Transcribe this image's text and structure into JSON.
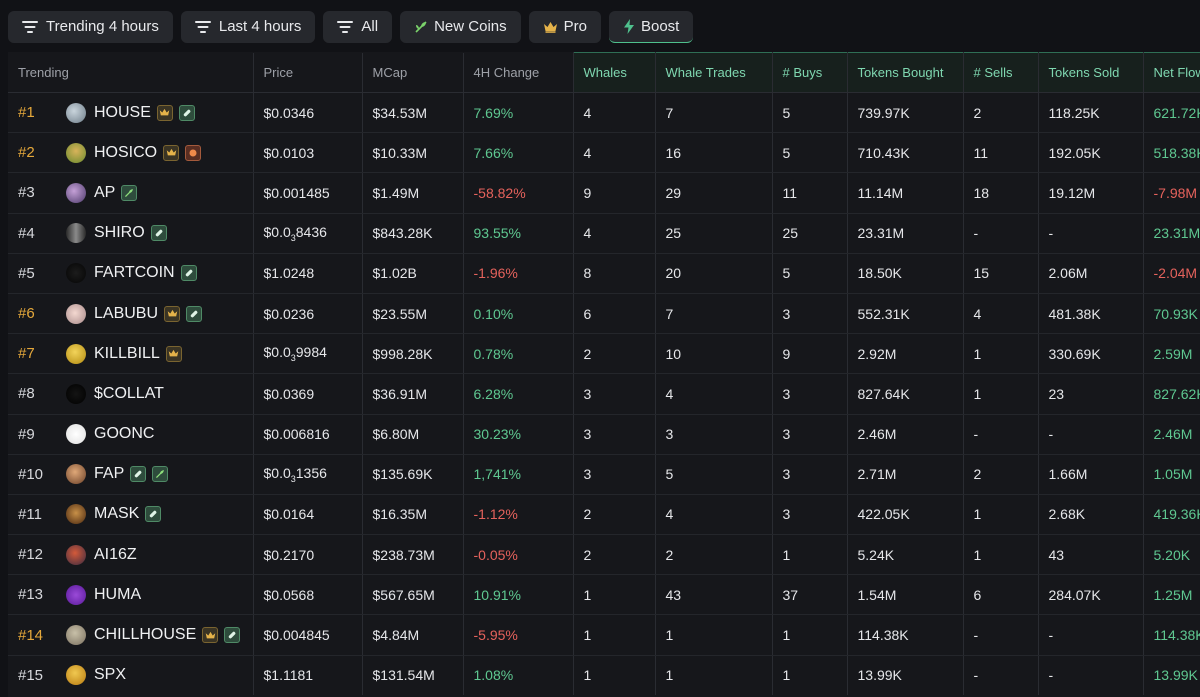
{
  "toolbar": {
    "buttons": [
      {
        "label": "Trending 4 hours",
        "icon": "filter-lines-icon"
      },
      {
        "label": "Last 4 hours",
        "icon": "filter-lines-icon"
      },
      {
        "label": "All",
        "icon": "filter-lines-icon"
      },
      {
        "label": "New Coins",
        "icon": "sprout-icon"
      },
      {
        "label": "Pro",
        "icon": "crown-icon"
      },
      {
        "label": "Boost",
        "icon": "lightning-icon"
      }
    ]
  },
  "table": {
    "columns": [
      "Trending",
      "Price",
      "MCap",
      "4H Change",
      "Whales",
      "Whale Trades",
      "# Buys",
      "Tokens Bought",
      "# Sells",
      "Tokens Sold",
      "Net Flow"
    ],
    "rows": [
      {
        "rank": "#1",
        "name": "HOUSE",
        "badges": [
          "crown",
          "pill"
        ],
        "price": "$0.0346",
        "mcap": "$34.53M",
        "change": "7.69%",
        "whales": "4",
        "whale_trades": "7",
        "buys": "5",
        "tokens_bought": "739.97K",
        "sells": "2",
        "tokens_sold": "118.25K",
        "net_flow": "621.72K"
      },
      {
        "rank": "#2",
        "name": "HOSICO",
        "badges": [
          "crown",
          "fire"
        ],
        "price": "$0.0103",
        "mcap": "$10.33M",
        "change": "7.66%",
        "whales": "4",
        "whale_trades": "16",
        "buys": "5",
        "tokens_bought": "710.43K",
        "sells": "11",
        "tokens_sold": "192.05K",
        "net_flow": "518.38K"
      },
      {
        "rank": "#3",
        "name": "AP",
        "badges": [
          "sprout"
        ],
        "price": "$0.001485",
        "mcap": "$1.49M",
        "change": "-58.82%",
        "whales": "9",
        "whale_trades": "29",
        "buys": "11",
        "tokens_bought": "11.14M",
        "sells": "18",
        "tokens_sold": "19.12M",
        "net_flow": "-7.98M"
      },
      {
        "rank": "#4",
        "name": "SHIRO",
        "badges": [
          "pill"
        ],
        "price": "$0.0",
        "price_sub": "3",
        "price_tail": "8436",
        "mcap": "$843.28K",
        "change": "93.55%",
        "whales": "4",
        "whale_trades": "25",
        "buys": "25",
        "tokens_bought": "23.31M",
        "sells": "-",
        "tokens_sold": "-",
        "net_flow": "23.31M"
      },
      {
        "rank": "#5",
        "name": "FARTCOIN",
        "badges": [
          "pill"
        ],
        "price": "$1.0248",
        "mcap": "$1.02B",
        "change": "-1.96%",
        "whales": "8",
        "whale_trades": "20",
        "buys": "5",
        "tokens_bought": "18.50K",
        "sells": "15",
        "tokens_sold": "2.06M",
        "net_flow": "-2.04M"
      },
      {
        "rank": "#6",
        "name": "LABUBU",
        "badges": [
          "crown",
          "pill"
        ],
        "price": "$0.0236",
        "mcap": "$23.55M",
        "change": "0.10%",
        "whales": "6",
        "whale_trades": "7",
        "buys": "3",
        "tokens_bought": "552.31K",
        "sells": "4",
        "tokens_sold": "481.38K",
        "net_flow": "70.93K"
      },
      {
        "rank": "#7",
        "name": "KILLBILL",
        "badges": [
          "crown"
        ],
        "price": "$0.0",
        "price_sub": "3",
        "price_tail": "9984",
        "mcap": "$998.28K",
        "change": "0.78%",
        "whales": "2",
        "whale_trades": "10",
        "buys": "9",
        "tokens_bought": "2.92M",
        "sells": "1",
        "tokens_sold": "330.69K",
        "net_flow": "2.59M"
      },
      {
        "rank": "#8",
        "name": "$COLLAT",
        "badges": [],
        "price": "$0.0369",
        "mcap": "$36.91M",
        "change": "6.28%",
        "whales": "3",
        "whale_trades": "4",
        "buys": "3",
        "tokens_bought": "827.64K",
        "sells": "1",
        "tokens_sold": "23",
        "net_flow": "827.62K"
      },
      {
        "rank": "#9",
        "name": "GOONC",
        "badges": [],
        "price": "$0.006816",
        "mcap": "$6.80M",
        "change": "30.23%",
        "whales": "3",
        "whale_trades": "3",
        "buys": "3",
        "tokens_bought": "2.46M",
        "sells": "-",
        "tokens_sold": "-",
        "net_flow": "2.46M"
      },
      {
        "rank": "#10",
        "name": "FAP",
        "badges": [
          "pill",
          "sprout"
        ],
        "price": "$0.0",
        "price_sub": "3",
        "price_tail": "1356",
        "mcap": "$135.69K",
        "change": "1,741%",
        "whales": "3",
        "whale_trades": "5",
        "buys": "3",
        "tokens_bought": "2.71M",
        "sells": "2",
        "tokens_sold": "1.66M",
        "net_flow": "1.05M"
      },
      {
        "rank": "#11",
        "name": "MASK",
        "badges": [
          "pill"
        ],
        "price": "$0.0164",
        "mcap": "$16.35M",
        "change": "-1.12%",
        "whales": "2",
        "whale_trades": "4",
        "buys": "3",
        "tokens_bought": "422.05K",
        "sells": "1",
        "tokens_sold": "2.68K",
        "net_flow": "419.36K"
      },
      {
        "rank": "#12",
        "name": "AI16Z",
        "badges": [],
        "price": "$0.2170",
        "mcap": "$238.73M",
        "change": "-0.05%",
        "whales": "2",
        "whale_trades": "2",
        "buys": "1",
        "tokens_bought": "5.24K",
        "sells": "1",
        "tokens_sold": "43",
        "net_flow": "5.20K"
      },
      {
        "rank": "#13",
        "name": "HUMA",
        "badges": [],
        "price": "$0.0568",
        "mcap": "$567.65M",
        "change": "10.91%",
        "whales": "1",
        "whale_trades": "43",
        "buys": "37",
        "tokens_bought": "1.54M",
        "sells": "6",
        "tokens_sold": "284.07K",
        "net_flow": "1.25M"
      },
      {
        "rank": "#14",
        "name": "CHILLHOUSE",
        "badges": [
          "crown",
          "pill"
        ],
        "price": "$0.004845",
        "mcap": "$4.84M",
        "change": "-5.95%",
        "whales": "1",
        "whale_trades": "1",
        "buys": "1",
        "tokens_bought": "114.38K",
        "sells": "-",
        "tokens_sold": "-",
        "net_flow": "114.38K"
      },
      {
        "rank": "#15",
        "name": "SPX",
        "badges": [],
        "price": "$1.1181",
        "mcap": "$131.54M",
        "change": "1.08%",
        "whales": "1",
        "whale_trades": "1",
        "buys": "1",
        "tokens_bought": "13.99K",
        "sells": "-",
        "tokens_sold": "-",
        "net_flow": "13.99K"
      }
    ]
  },
  "colors": {
    "positive": "#5fc891",
    "negative": "#e5625c",
    "gold_rank": "#e5a83b",
    "accent": "#4fc08d"
  }
}
